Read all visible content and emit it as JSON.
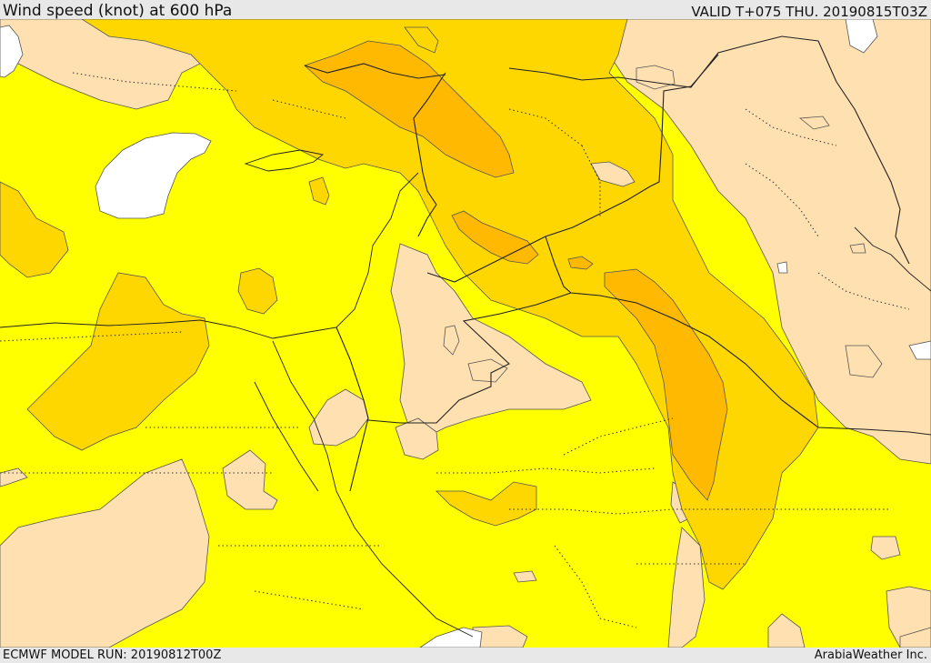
{
  "header": {
    "title": "Wind speed (knot) at 600 hPa",
    "valid": "VALID T+075 THU. 20190815T03Z"
  },
  "footer": {
    "model_run": "ECMWF MODEL RUN: 20190812T00Z",
    "credit": "ArabiaWeather Inc."
  },
  "colors": {
    "calm_white": "#ffffff",
    "light_band": "#ffe0b0",
    "yellow_band": "#ffff00",
    "gold_band": "#ffd700",
    "orange_band": "#ffb900"
  }
}
